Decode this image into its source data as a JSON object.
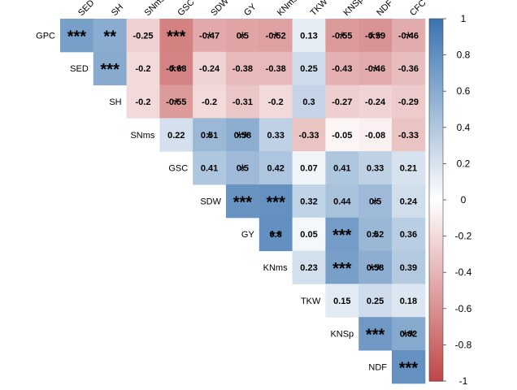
{
  "chart_data": {
    "type": "heatmap",
    "title": "",
    "layout": "upper-triangular correlation matrix with diagonal labels",
    "col_labels": [
      "SED",
      "SH",
      "SNms",
      "GSC",
      "SDW",
      "GY",
      "KNms",
      "TKW",
      "KNSp",
      "NDF",
      "CFC"
    ],
    "row_labels": [
      "GPC",
      "SED",
      "SH",
      "SNms",
      "GSC",
      "SDW",
      "GY",
      "KNms",
      "TKW",
      "KNSp",
      "NDF"
    ],
    "values": [
      [
        0.69,
        0.6,
        -0.25,
        -0.69,
        -0.47,
        -0.5,
        -0.52,
        0.13,
        -0.55,
        -0.59,
        -0.46
      ],
      [
        null,
        0.61,
        -0.2,
        -0.68,
        -0.24,
        -0.38,
        -0.38,
        0.25,
        -0.43,
        -0.46,
        -0.36
      ],
      [
        null,
        null,
        -0.2,
        -0.55,
        -0.2,
        -0.31,
        -0.2,
        0.3,
        -0.27,
        -0.24,
        -0.29
      ],
      [
        null,
        null,
        null,
        0.22,
        0.51,
        0.58,
        0.33,
        -0.33,
        -0.05,
        -0.08,
        -0.33
      ],
      [
        null,
        null,
        null,
        null,
        0.41,
        0.5,
        0.42,
        0.07,
        0.41,
        0.33,
        0.21
      ],
      [
        null,
        null,
        null,
        null,
        null,
        0.77,
        0.79,
        0.32,
        0.44,
        0.5,
        0.24
      ],
      [
        null,
        null,
        null,
        null,
        null,
        null,
        0.8,
        0.05,
        0.71,
        0.52,
        0.36
      ],
      [
        null,
        null,
        null,
        null,
        null,
        null,
        null,
        0.23,
        0.69,
        0.58,
        0.39
      ],
      [
        null,
        null,
        null,
        null,
        null,
        null,
        null,
        null,
        0.15,
        0.25,
        0.18
      ],
      [
        null,
        null,
        null,
        null,
        null,
        null,
        null,
        null,
        null,
        0.74,
        0.62
      ],
      [
        null,
        null,
        null,
        null,
        null,
        null,
        null,
        null,
        null,
        null,
        0.79
      ]
    ],
    "value_labels": [
      [
        "***",
        "**",
        "-0.25",
        "***",
        "-0.47",
        "0.5",
        "-0.52",
        "0.13",
        "-0.55",
        "-0.59",
        "-0.46"
      ],
      [
        null,
        "***",
        "-0.2",
        "-0.68",
        "-0.24",
        "-0.38",
        "-0.38",
        "0.25",
        "-0.43",
        "-0.46",
        "-0.36"
      ],
      [
        null,
        null,
        "-0.2",
        "-0.55",
        "-0.2",
        "-0.31",
        "-0.2",
        "0.3",
        "-0.27",
        "-0.24",
        "-0.29"
      ],
      [
        null,
        null,
        null,
        "0.22",
        "0.51",
        "0.58",
        "0.33",
        "-0.33",
        "-0.05",
        "-0.08",
        "-0.33"
      ],
      [
        null,
        null,
        null,
        null,
        "0.41",
        "0.5",
        "0.42",
        "0.07",
        "0.41",
        "0.33",
        "0.21"
      ],
      [
        null,
        null,
        null,
        null,
        null,
        "***",
        "***",
        "0.32",
        "0.44",
        "0.5",
        "0.24"
      ],
      [
        null,
        null,
        null,
        null,
        null,
        null,
        "0.8",
        "0.05",
        "***",
        "0.52",
        "0.36"
      ],
      [
        null,
        null,
        null,
        null,
        null,
        null,
        null,
        "0.23",
        "***",
        "0.58",
        "0.39"
      ],
      [
        null,
        null,
        null,
        null,
        null,
        null,
        null,
        null,
        "0.15",
        "0.25",
        "0.18"
      ],
      [
        null,
        null,
        null,
        null,
        null,
        null,
        null,
        null,
        null,
        "***",
        "0.62"
      ],
      [
        null,
        null,
        null,
        null,
        null,
        null,
        null,
        null,
        null,
        null,
        "***"
      ]
    ],
    "stars": [
      [
        3,
        2,
        0,
        3,
        1,
        1,
        1,
        0,
        1,
        2,
        1
      ],
      [
        null,
        3,
        0,
        2,
        0,
        0,
        0,
        0,
        0,
        1,
        0
      ],
      [
        null,
        null,
        0,
        1,
        0,
        0,
        0,
        0,
        0,
        0,
        0
      ],
      [
        null,
        null,
        null,
        0,
        1,
        2,
        0,
        0,
        0,
        0,
        0
      ],
      [
        null,
        null,
        null,
        null,
        0,
        1,
        0,
        0,
        0,
        0,
        0
      ],
      [
        null,
        null,
        null,
        null,
        null,
        3,
        3,
        0,
        0,
        1,
        0
      ],
      [
        null,
        null,
        null,
        null,
        null,
        null,
        2,
        0,
        3,
        1,
        0
      ],
      [
        null,
        null,
        null,
        null,
        null,
        null,
        null,
        0,
        3,
        2,
        0
      ],
      [
        null,
        null,
        null,
        null,
        null,
        null,
        null,
        null,
        0,
        0,
        0
      ],
      [
        null,
        null,
        null,
        null,
        null,
        null,
        null,
        null,
        null,
        3,
        2
      ],
      [
        null,
        null,
        null,
        null,
        null,
        null,
        null,
        null,
        null,
        null,
        3
      ]
    ],
    "colorbar": {
      "range": [
        -1,
        1
      ],
      "ticks": [
        "1",
        "0.8",
        "0.6",
        "0.4",
        "0.2",
        "0",
        "-0.2",
        "-0.4",
        "-0.6",
        "-0.8",
        "-1"
      ],
      "colors": {
        "negative": "#C0484A",
        "zero": "#FFFFFF",
        "positive": "#3C74B0"
      }
    },
    "grid": false,
    "legend": "right"
  }
}
